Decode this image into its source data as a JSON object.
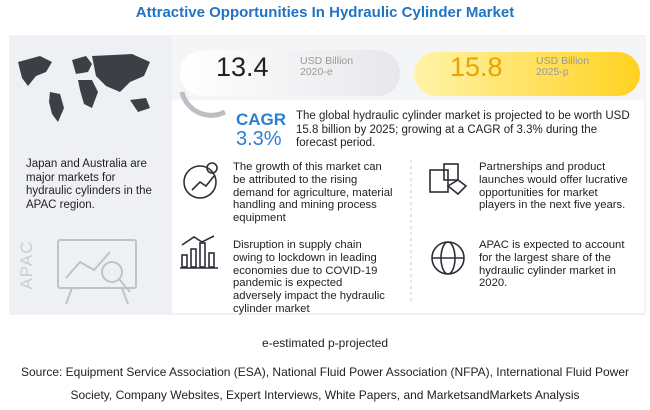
{
  "header": {
    "title": "Attractive Opportunities In Hydraulic Cylinder Market"
  },
  "left_panel": {
    "text": "Japan and Australia are major markets for hydraulic cylinders in the APAC region.",
    "region": "APAC"
  },
  "market_size": [
    {
      "value": "13.4",
      "unit": "USD Billion",
      "year": "2020-e"
    },
    {
      "value": "15.8",
      "unit": "USD Billion",
      "year": "2025-p"
    }
  ],
  "cagr": {
    "label": "CAGR",
    "value": "3.3%"
  },
  "summary": "The global hydraulic cylinder market is projected to be worth USD 15.8 billion by 2025; growing at a CAGR of 3.3% during the forecast period.",
  "highlights": [
    "The growth of this market can be attributed to the rising demand for agriculture, material handling and mining process equipment",
    "Disruption in supply chain owing to lockdown in leading economies due to COVID-19 pandemic is expected adversely impact the hydraulic cylinder market",
    "Partnerships and product launches would offer lucrative opportunities for market players in the next five years.",
    "APAC is expected to account for the largest share of the hydraulic cylinder market in 2020."
  ],
  "footer": {
    "note": "e-estimated p-projected",
    "source": "Source: Equipment Service Association (ESA), National Fluid Power Association (NFPA), International Fluid Power Society, Company Websites, Expert Interviews, White Papers, and MarketsandMarkets Analysis"
  }
}
